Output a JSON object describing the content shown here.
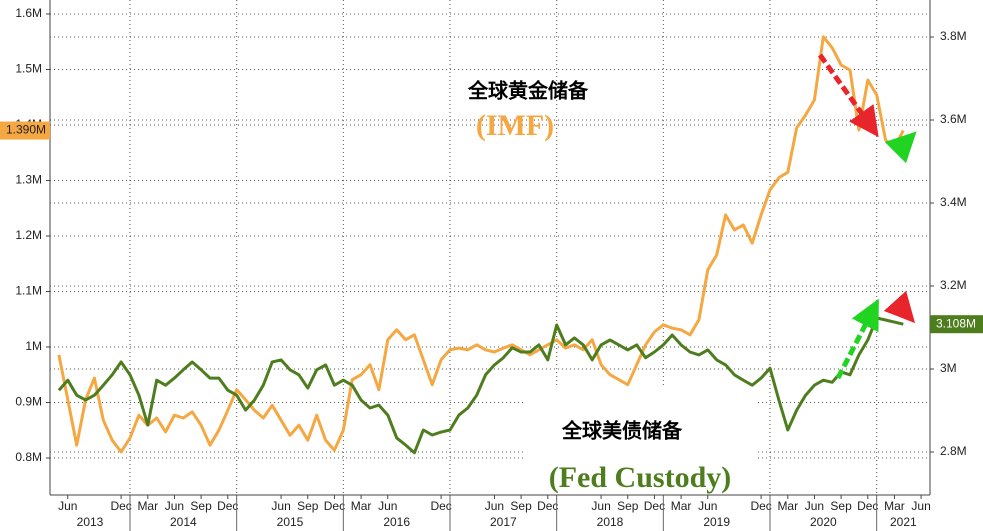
{
  "chart_data": {
    "type": "line",
    "annotations": [
      {
        "text": "全球黄金储备",
        "color": "#000000"
      },
      {
        "text": "(IMF)",
        "color": "#f5a742"
      },
      {
        "text": "全球美债储备",
        "color": "#000000"
      },
      {
        "text": "(Fed Custody)",
        "color": "#4e7d1e"
      }
    ],
    "x": [
      "2013-05",
      "2013-06",
      "2013-07",
      "2013-08",
      "2013-09",
      "2013-10",
      "2013-11",
      "2013-12",
      "2014-01",
      "2014-02",
      "2014-03",
      "2014-04",
      "2014-05",
      "2014-06",
      "2014-07",
      "2014-08",
      "2014-09",
      "2014-10",
      "2014-11",
      "2014-12",
      "2015-01",
      "2015-02",
      "2015-03",
      "2015-04",
      "2015-05",
      "2015-06",
      "2015-07",
      "2015-08",
      "2015-09",
      "2015-10",
      "2015-11",
      "2015-12",
      "2016-01",
      "2016-02",
      "2016-03",
      "2016-04",
      "2016-05",
      "2016-06",
      "2016-07",
      "2016-08",
      "2016-09",
      "2016-10",
      "2016-11",
      "2016-12",
      "2017-01",
      "2017-02",
      "2017-03",
      "2017-04",
      "2017-05",
      "2017-06",
      "2017-07",
      "2017-08",
      "2017-09",
      "2017-10",
      "2017-11",
      "2017-12",
      "2018-01",
      "2018-02",
      "2018-03",
      "2018-04",
      "2018-05",
      "2018-06",
      "2018-07",
      "2018-08",
      "2018-09",
      "2018-10",
      "2018-11",
      "2018-12",
      "2019-01",
      "2019-02",
      "2019-03",
      "2019-04",
      "2019-05",
      "2019-06",
      "2019-07",
      "2019-08",
      "2019-09",
      "2019-10",
      "2019-11",
      "2019-12",
      "2020-01",
      "2020-02",
      "2020-03",
      "2020-04",
      "2020-05",
      "2020-06",
      "2020-07",
      "2020-08",
      "2020-09",
      "2020-10",
      "2020-11",
      "2020-12",
      "2021-01",
      "2021-02",
      "2021-03",
      "2021-04"
    ],
    "series": [
      {
        "color": "#f5a742",
        "axis": "y",
        "last_value_label": "1.390M",
        "values": [
          986000,
          905000,
          823000,
          905000,
          944000,
          868000,
          832000,
          811000,
          836000,
          877000,
          859000,
          872000,
          847000,
          877000,
          872000,
          883000,
          859000,
          823000,
          850000,
          886000,
          923000,
          905000,
          886000,
          872000,
          895000,
          868000,
          841000,
          859000,
          832000,
          877000,
          832000,
          814000,
          850000,
          941000,
          950000,
          968000,
          923000,
          1013000,
          1031000,
          1013000,
          1022000,
          977000,
          932000,
          977000,
          995000,
          998000,
          995000,
          1004000,
          995000,
          991000,
          998000,
          1004000,
          995000,
          986000,
          995000,
          1004000,
          1013000,
          998000,
          1004000,
          995000,
          1013000,
          968000,
          950000,
          941000,
          932000,
          968000,
          1004000,
          1027000,
          1040000,
          1034000,
          1031000,
          1022000,
          1049000,
          1139000,
          1166000,
          1238000,
          1211000,
          1220000,
          1187000,
          1238000,
          1283000,
          1305000,
          1315000,
          1395000,
          1418000,
          1445000,
          1559000,
          1539000,
          1508000,
          1499000,
          1391000,
          1481000,
          1454000,
          1373000,
          1359000,
          1390000
        ]
      },
      {
        "color": "#4e7d1e",
        "axis": "y2",
        "last_value_label": "3.108M",
        "values": [
          2949000,
          2973000,
          2937000,
          2925000,
          2937000,
          2961000,
          2986000,
          3017000,
          2986000,
          2937000,
          2865000,
          2973000,
          2961000,
          2978000,
          2998000,
          3017000,
          2998000,
          2978000,
          2978000,
          2949000,
          2937000,
          2901000,
          2925000,
          2961000,
          3017000,
          3022000,
          2998000,
          2986000,
          2954000,
          2998000,
          3010000,
          2961000,
          2973000,
          2961000,
          2925000,
          2906000,
          2913000,
          2889000,
          2834000,
          2817000,
          2798000,
          2853000,
          2841000,
          2848000,
          2853000,
          2889000,
          2906000,
          2937000,
          2986000,
          3010000,
          3027000,
          3051000,
          3041000,
          3041000,
          3058000,
          3022000,
          3106000,
          3058000,
          3075000,
          3058000,
          3022000,
          3058000,
          3070000,
          3058000,
          3046000,
          3058000,
          3027000,
          3041000,
          3058000,
          3082000,
          3058000,
          3041000,
          3034000,
          3046000,
          3022000,
          3010000,
          2986000,
          2973000,
          2961000,
          2978000,
          3002000,
          2925000,
          2853000,
          2901000,
          2937000,
          2961000,
          2973000,
          2968000,
          2993000,
          2986000,
          3034000,
          3070000,
          3123000,
          3118000,
          3113000,
          3108000
        ]
      }
    ],
    "xlim": [
      "2013-04",
      "2021-07"
    ],
    "xticks": [
      {
        "value": "2013-06",
        "label": "Jun"
      },
      {
        "value": "2013-12",
        "label": "Dec"
      },
      {
        "value": "2014-03",
        "label": "Mar"
      },
      {
        "value": "2014-06",
        "label": "Jun"
      },
      {
        "value": "2014-09",
        "label": "Sep"
      },
      {
        "value": "2014-12",
        "label": "Dec"
      },
      {
        "value": "2015-06",
        "label": "Jun"
      },
      {
        "value": "2015-09",
        "label": "Sep"
      },
      {
        "value": "2015-12",
        "label": "Dec"
      },
      {
        "value": "2016-03",
        "label": "Mar"
      },
      {
        "value": "2016-06",
        "label": "Jun"
      },
      {
        "value": "2016-12",
        "label": "Dec"
      },
      {
        "value": "2017-06",
        "label": "Jun"
      },
      {
        "value": "2017-09",
        "label": "Sep"
      },
      {
        "value": "2017-12",
        "label": "Dec"
      },
      {
        "value": "2018-06",
        "label": "Jun"
      },
      {
        "value": "2018-09",
        "label": "Sep"
      },
      {
        "value": "2018-12",
        "label": "Dec"
      },
      {
        "value": "2019-03",
        "label": "Mar"
      },
      {
        "value": "2019-06",
        "label": "Jun"
      },
      {
        "value": "2019-12",
        "label": "Dec"
      },
      {
        "value": "2020-03",
        "label": "Mar"
      },
      {
        "value": "2020-06",
        "label": "Jun"
      },
      {
        "value": "2020-09",
        "label": "Sep"
      },
      {
        "value": "2020-12",
        "label": "Dec"
      },
      {
        "value": "2021-03",
        "label": "Mar"
      },
      {
        "value": "2021-06",
        "label": "Jun"
      }
    ],
    "year_ticks": [
      "2013",
      "2014",
      "2015",
      "2016",
      "2017",
      "2018",
      "2019",
      "2020",
      "2021"
    ],
    "ylim": [
      733300,
      1625200
    ],
    "yticks": [
      {
        "value": 800000,
        "label": "0.8M"
      },
      {
        "value": 900000,
        "label": "0.9M"
      },
      {
        "value": 1000000,
        "label": "1M"
      },
      {
        "value": 1100000,
        "label": "1.1M"
      },
      {
        "value": 1200000,
        "label": "1.2M"
      },
      {
        "value": 1300000,
        "label": "1.3M"
      },
      {
        "value": 1400000,
        "label": "1.4M"
      },
      {
        "value": 1500000,
        "label": "1.5M"
      },
      {
        "value": 1600000,
        "label": "1.6M"
      }
    ],
    "y2lim": [
      2696400,
      3889200
    ],
    "y2ticks": [
      {
        "value": 2800000,
        "label": "2.8M"
      },
      {
        "value": 3000000,
        "label": "3M"
      },
      {
        "value": 3200000,
        "label": "3.2M"
      },
      {
        "value": 3400000,
        "label": "3.4M"
      },
      {
        "value": 3600000,
        "label": "3.6M"
      },
      {
        "value": 3800000,
        "label": "3.8M"
      }
    ],
    "grid": true
  }
}
